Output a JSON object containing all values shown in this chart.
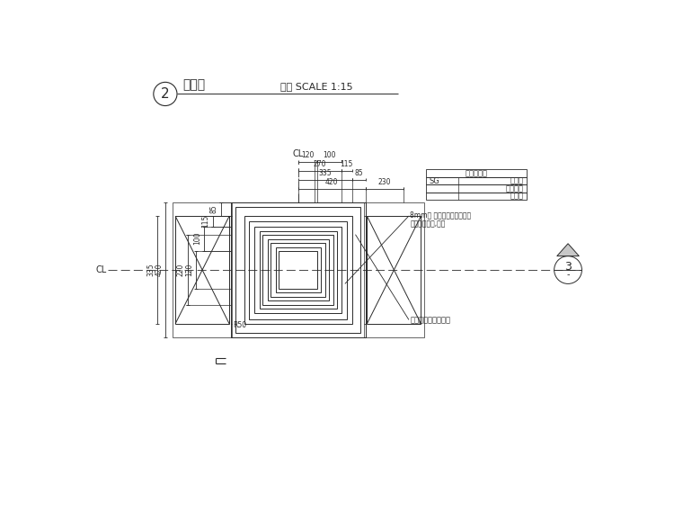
{
  "bg_color": "#ffffff",
  "line_color": "#2a2a2a",
  "title_text": "平面图",
  "scale_text": "比例 SCALE 1:15",
  "cl_label": "CL",
  "annotation1": "灯具由专业厂家提供",
  "annotation2_1": "8mm厃 热镇锌防腹处理方通",
  "annotation2_2": "静电粉末喷涂,黑色",
  "table_header": "按尺寸切割",
  "table_row1_l": "SG",
  "table_row1_r": "花岗石",
  "table_row2_r": "细面饰面",
  "table_row3_r": "黄金麄",
  "dim_420": "420",
  "dim_230": "230",
  "dim_335": "335",
  "dim_85": "85",
  "dim_270": "270",
  "dim_115": "115",
  "dim_120": "120",
  "dim_100": "100",
  "dim_85v": "85",
  "dim_115v": "115",
  "dim_100v": "100",
  "dim_120v": "120",
  "dim_220": "220",
  "dim_420v": "420",
  "dim_335v": "335",
  "dim_R50": "R50",
  "fig_num": "2",
  "fig_num3": "3"
}
